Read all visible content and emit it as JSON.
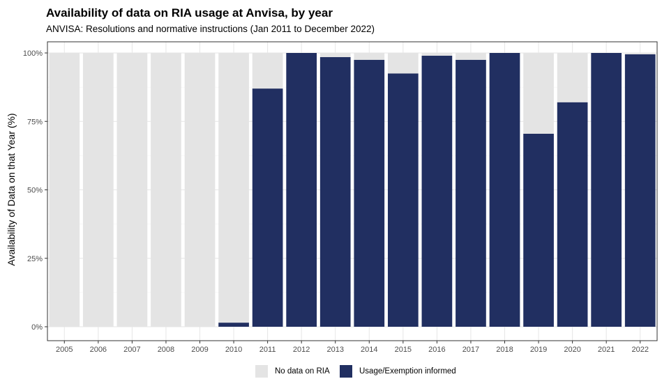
{
  "chart_data": {
    "type": "bar",
    "stacked": true,
    "title": "Availability of data on RIA usage at Anvisa, by year",
    "subtitle": "ANVISA: Resolutions and normative instructions (Jan 2011 to December 2022)",
    "xlabel": "",
    "ylabel": "Availability of Data on that Year (%)",
    "ylim": [
      0,
      100
    ],
    "yticks": [
      0,
      25,
      50,
      75,
      100
    ],
    "ytick_labels": [
      "0%",
      "25%",
      "50%",
      "75%",
      "100%"
    ],
    "categories": [
      "2005",
      "2006",
      "2007",
      "2008",
      "2009",
      "2010",
      "2011",
      "2012",
      "2013",
      "2014",
      "2015",
      "2016",
      "2017",
      "2018",
      "2019",
      "2020",
      "2021",
      "2022"
    ],
    "series": [
      {
        "name": "Usage/Exemption informed",
        "color": "#212f61",
        "values": [
          0,
          0,
          0,
          0,
          0,
          1.5,
          87,
          100,
          98.5,
          97.5,
          92.5,
          99,
          97.5,
          100,
          70.5,
          82,
          100,
          99.5
        ]
      },
      {
        "name": "No data on RIA",
        "color": "#e4e4e4",
        "values": [
          100,
          100,
          100,
          100,
          100,
          98.5,
          13,
          0,
          1.5,
          2.5,
          7.5,
          1,
          2.5,
          0,
          29.5,
          18,
          0,
          0.5
        ]
      }
    ],
    "legend_position": "bottom",
    "grid": true
  }
}
